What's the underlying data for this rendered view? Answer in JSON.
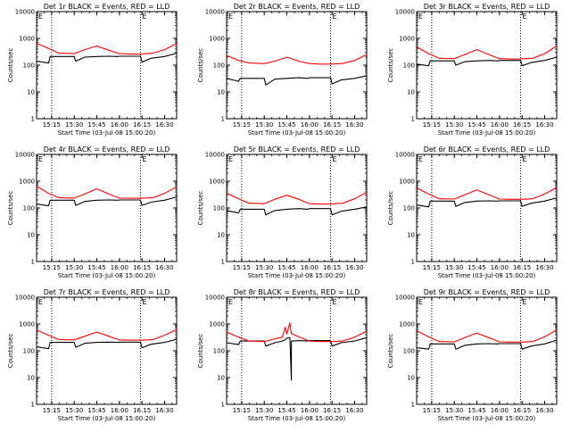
{
  "colors": {
    "events": "#000000",
    "lld": "#ff0000",
    "axes": "#000000",
    "background": "#ffffff"
  },
  "chart_data": [
    {
      "type": "line",
      "title": "Det 1r BLACK = Events, RED = LLD",
      "xlabel": "Start Time (03-Jul-08 15:00:20)",
      "ylabel": "Counts/sec",
      "yscale": "log",
      "ylim": [
        1,
        10000
      ],
      "xlim": [
        "15:05",
        "16:38"
      ],
      "x_tick_labels": [
        "15:15",
        "15:30",
        "15:45",
        "16:00",
        "16:15",
        "16:30"
      ],
      "y_tick_labels": [
        "1",
        "10",
        "100",
        "1000",
        "10000"
      ],
      "corner_marks": [
        "E",
        "E"
      ],
      "vertical_dotted_lines": [
        "15:15",
        "16:14"
      ],
      "series": [
        {
          "x": [
            "15:05",
            "15:13",
            "15:14",
            "15:20",
            "15:30",
            "15:31",
            "15:37",
            "15:45",
            "15:53",
            "15:59",
            "16:00",
            "16:07",
            "16:14",
            "16:15",
            "16:21",
            "16:30",
            "16:38"
          ],
          "values": [
            140,
            120,
            210,
            210,
            210,
            140,
            200,
            210,
            215,
            210,
            215,
            215,
            215,
            130,
            180,
            210,
            280
          ]
        },
        {
          "x": [
            "15:05",
            "15:13",
            "15:20",
            "15:30",
            "15:37",
            "15:45",
            "15:53",
            "16:00",
            "16:07",
            "16:14",
            "16:22",
            "16:30",
            "16:38"
          ],
          "values": [
            650,
            420,
            280,
            270,
            380,
            520,
            360,
            270,
            260,
            260,
            280,
            380,
            640
          ]
        }
      ]
    },
    {
      "type": "line",
      "title": "Det 2r BLACK = Events, RED = LLD",
      "xlabel": "Start Time (03-Jul-08 15:00:20)",
      "ylabel": "Counts/sec",
      "yscale": "log",
      "ylim": [
        1,
        10000
      ],
      "xlim": [
        "15:05",
        "16:38"
      ],
      "x_tick_labels": [
        "15:15",
        "15:30",
        "15:45",
        "16:00",
        "16:15",
        "16:30"
      ],
      "y_tick_labels": [
        "1",
        "10",
        "100",
        "1000",
        "10000"
      ],
      "corner_marks": [
        "E",
        "E"
      ],
      "vertical_dotted_lines": [
        "15:15",
        "16:14"
      ],
      "series": [
        {
          "x": [
            "15:05",
            "15:13",
            "15:14",
            "15:20",
            "15:30",
            "15:31",
            "15:37",
            "15:45",
            "15:53",
            "15:59",
            "16:00",
            "16:07",
            "16:14",
            "16:15",
            "16:21",
            "16:30",
            "16:38"
          ],
          "values": [
            32,
            25,
            32,
            32,
            32,
            18,
            30,
            32,
            34,
            32,
            34,
            34,
            34,
            20,
            28,
            32,
            40
          ]
        },
        {
          "x": [
            "15:05",
            "15:13",
            "15:20",
            "15:30",
            "15:37",
            "15:45",
            "15:53",
            "16:00",
            "16:07",
            "16:14",
            "16:22",
            "16:30",
            "16:38"
          ],
          "values": [
            230,
            150,
            120,
            115,
            140,
            200,
            140,
            115,
            110,
            110,
            115,
            150,
            250
          ]
        }
      ]
    },
    {
      "type": "line",
      "title": "Det 3r BLACK = Events, RED = LLD",
      "xlabel": "Start Time (03-Jul-08 15:00:20)",
      "ylabel": "Counts/sec",
      "yscale": "log",
      "ylim": [
        1,
        10000
      ],
      "xlim": [
        "15:05",
        "16:38"
      ],
      "x_tick_labels": [
        "15:15",
        "15:30",
        "15:45",
        "16:00",
        "16:15",
        "16:30"
      ],
      "y_tick_labels": [
        "1",
        "10",
        "100",
        "1000",
        "10000"
      ],
      "corner_marks": [
        "E",
        "E"
      ],
      "vertical_dotted_lines": [
        "15:15",
        "16:14"
      ],
      "series": [
        {
          "x": [
            "15:05",
            "15:13",
            "15:14",
            "15:20",
            "15:30",
            "15:31",
            "15:37",
            "15:45",
            "15:53",
            "15:59",
            "16:00",
            "16:07",
            "16:14",
            "16:15",
            "16:21",
            "16:30",
            "16:38"
          ],
          "values": [
            110,
            95,
            145,
            145,
            145,
            100,
            135,
            145,
            150,
            145,
            150,
            150,
            150,
            95,
            125,
            150,
            200
          ]
        },
        {
          "x": [
            "15:05",
            "15:13",
            "15:20",
            "15:30",
            "15:37",
            "15:45",
            "15:53",
            "16:00",
            "16:07",
            "16:14",
            "16:22",
            "16:30",
            "16:38"
          ],
          "values": [
            480,
            270,
            180,
            175,
            250,
            380,
            250,
            175,
            170,
            170,
            180,
            270,
            520
          ]
        }
      ]
    },
    {
      "type": "line",
      "title": "Det 4r BLACK = Events, RED = LLD",
      "xlabel": "Start Time (03-Jul-08 15:00:20)",
      "ylabel": "Counts/sec",
      "yscale": "log",
      "ylim": [
        1,
        10000
      ],
      "xlim": [
        "15:05",
        "16:38"
      ],
      "x_tick_labels": [
        "15:15",
        "15:30",
        "15:45",
        "16:00",
        "16:15",
        "16:30"
      ],
      "y_tick_labels": [
        "1",
        "10",
        "100",
        "1000",
        "10000"
      ],
      "corner_marks": [
        "E",
        "E"
      ],
      "vertical_dotted_lines": [
        "15:15",
        "16:14"
      ],
      "series": [
        {
          "x": [
            "15:05",
            "15:13",
            "15:14",
            "15:20",
            "15:30",
            "15:31",
            "15:37",
            "15:45",
            "15:53",
            "15:59",
            "16:00",
            "16:07",
            "16:14",
            "16:15",
            "16:21",
            "16:30",
            "16:38"
          ],
          "values": [
            140,
            120,
            195,
            195,
            195,
            125,
            175,
            195,
            200,
            195,
            200,
            200,
            200,
            125,
            165,
            195,
            260
          ]
        },
        {
          "x": [
            "15:05",
            "15:13",
            "15:20",
            "15:30",
            "15:37",
            "15:45",
            "15:53",
            "16:00",
            "16:07",
            "16:14",
            "16:22",
            "16:30",
            "16:38"
          ],
          "values": [
            650,
            350,
            240,
            235,
            330,
            520,
            330,
            235,
            230,
            230,
            240,
            350,
            620
          ]
        }
      ]
    },
    {
      "type": "line",
      "title": "Det 5r BLACK = Events, RED = LLD",
      "xlabel": "Start Time (03-Jul-08 15:00:20)",
      "ylabel": "Counts/sec",
      "yscale": "log",
      "ylim": [
        1,
        10000
      ],
      "xlim": [
        "15:05",
        "16:38"
      ],
      "x_tick_labels": [
        "15:15",
        "15:30",
        "15:45",
        "16:00",
        "16:15",
        "16:30"
      ],
      "y_tick_labels": [
        "1",
        "10",
        "100",
        "1000",
        "10000"
      ],
      "corner_marks": [
        "E",
        "E"
      ],
      "vertical_dotted_lines": [
        "15:15",
        "16:14"
      ],
      "series": [
        {
          "x": [
            "15:05",
            "15:13",
            "15:14",
            "15:20",
            "15:30",
            "15:31",
            "15:37",
            "15:45",
            "15:53",
            "15:59",
            "16:00",
            "16:07",
            "16:14",
            "16:15",
            "16:21",
            "16:30",
            "16:38"
          ],
          "values": [
            80,
            65,
            90,
            90,
            90,
            55,
            80,
            90,
            95,
            90,
            95,
            95,
            95,
            55,
            75,
            90,
            110
          ]
        },
        {
          "x": [
            "15:05",
            "15:13",
            "15:20",
            "15:30",
            "15:37",
            "15:45",
            "15:53",
            "16:00",
            "16:07",
            "16:14",
            "16:22",
            "16:30",
            "16:38"
          ],
          "values": [
            360,
            220,
            150,
            145,
            210,
            300,
            210,
            145,
            140,
            140,
            150,
            220,
            380
          ]
        }
      ]
    },
    {
      "type": "line",
      "title": "Det 6r BLACK = Events, RED = LLD",
      "xlabel": "Start Time (03-Jul-08 15:00:20)",
      "ylabel": "Counts/sec",
      "yscale": "log",
      "ylim": [
        1,
        10000
      ],
      "xlim": [
        "15:05",
        "16:38"
      ],
      "x_tick_labels": [
        "15:15",
        "15:30",
        "15:45",
        "16:00",
        "16:15",
        "16:30"
      ],
      "y_tick_labels": [
        "1",
        "10",
        "100",
        "1000",
        "10000"
      ],
      "corner_marks": [
        "E",
        "E"
      ],
      "vertical_dotted_lines": [
        "15:15",
        "16:14"
      ],
      "series": [
        {
          "x": [
            "15:05",
            "15:13",
            "15:14",
            "15:20",
            "15:30",
            "15:31",
            "15:37",
            "15:45",
            "15:53",
            "15:59",
            "16:00",
            "16:07",
            "16:14",
            "16:15",
            "16:21",
            "16:30",
            "16:38"
          ],
          "values": [
            130,
            110,
            180,
            180,
            180,
            115,
            160,
            180,
            185,
            180,
            185,
            185,
            185,
            115,
            150,
            180,
            240
          ]
        },
        {
          "x": [
            "15:05",
            "15:13",
            "15:20",
            "15:30",
            "15:37",
            "15:45",
            "15:53",
            "16:00",
            "16:07",
            "16:14",
            "16:22",
            "16:30",
            "16:38"
          ],
          "values": [
            560,
            330,
            220,
            215,
            310,
            470,
            310,
            215,
            210,
            210,
            220,
            330,
            580
          ]
        }
      ]
    },
    {
      "type": "line",
      "title": "Det 7r BLACK = Events, RED = LLD",
      "xlabel": "Start Time (03-Jul-08 15:00:20)",
      "ylabel": "Counts/sec",
      "yscale": "log",
      "ylim": [
        1,
        10000
      ],
      "xlim": [
        "15:05",
        "16:38"
      ],
      "x_tick_labels": [
        "15:15",
        "15:30",
        "15:45",
        "16:00",
        "16:15",
        "16:30"
      ],
      "y_tick_labels": [
        "1",
        "10",
        "100",
        "1000",
        "10000"
      ],
      "corner_marks": [
        "E",
        "E"
      ],
      "vertical_dotted_lines": [
        "15:15",
        "16:14"
      ],
      "series": [
        {
          "x": [
            "15:05",
            "15:13",
            "15:14",
            "15:20",
            "15:30",
            "15:31",
            "15:37",
            "15:45",
            "15:53",
            "15:59",
            "16:00",
            "16:07",
            "16:14",
            "16:15",
            "16:21",
            "16:30",
            "16:38"
          ],
          "values": [
            140,
            120,
            205,
            205,
            205,
            135,
            190,
            205,
            210,
            205,
            210,
            210,
            210,
            130,
            175,
            205,
            270
          ]
        },
        {
          "x": [
            "15:05",
            "15:13",
            "15:20",
            "15:30",
            "15:37",
            "15:45",
            "15:53",
            "16:00",
            "16:07",
            "16:14",
            "16:22",
            "16:30",
            "16:38"
          ],
          "values": [
            600,
            380,
            260,
            255,
            350,
            500,
            350,
            255,
            250,
            250,
            260,
            380,
            620
          ]
        }
      ]
    },
    {
      "type": "line",
      "title": "Det 8r BLACK = Events, RED = LLD",
      "xlabel": "Start Time (03-Jul-08 15:00:20)",
      "ylabel": "Counts/sec",
      "yscale": "log",
      "ylim": [
        1,
        10000
      ],
      "xlim": [
        "15:05",
        "16:38"
      ],
      "x_tick_labels": [
        "15:15",
        "15:30",
        "15:45",
        "16:00",
        "16:15",
        "16:30"
      ],
      "y_tick_labels": [
        "1",
        "10",
        "100",
        "1000",
        "10000"
      ],
      "corner_marks": [
        "E",
        "E"
      ],
      "vertical_dotted_lines": [
        "15:15",
        "16:14"
      ],
      "series": [
        {
          "x": [
            "15:05",
            "15:13",
            "15:14",
            "15:20",
            "15:30",
            "15:31",
            "15:37",
            "15:42",
            "15:44",
            "15:45",
            "15:47",
            "15:48",
            "15:48",
            "15:53",
            "15:59",
            "16:00",
            "16:07",
            "16:14",
            "16:15",
            "16:21",
            "16:30",
            "16:38"
          ],
          "values": [
            200,
            170,
            230,
            230,
            230,
            150,
            200,
            230,
            260,
            300,
            310,
            8,
            230,
            240,
            230,
            240,
            240,
            240,
            150,
            200,
            230,
            310
          ]
        },
        {
          "x": [
            "15:05",
            "15:13",
            "15:20",
            "15:30",
            "15:37",
            "15:42",
            "15:44",
            "15:45",
            "15:47",
            "15:48",
            "15:53",
            "16:00",
            "16:07",
            "16:14",
            "16:22",
            "16:30",
            "16:38"
          ],
          "values": [
            500,
            320,
            230,
            220,
            280,
            320,
            750,
            420,
            1100,
            440,
            330,
            230,
            220,
            220,
            230,
            320,
            540
          ]
        }
      ]
    },
    {
      "type": "line",
      "title": "Det 9r BLACK = Events, RED = LLD",
      "xlabel": "Start Time (03-Jul-08 15:00:20)",
      "ylabel": "Counts/sec",
      "yscale": "log",
      "ylim": [
        1,
        10000
      ],
      "xlim": [
        "15:05",
        "16:38"
      ],
      "x_tick_labels": [
        "15:15",
        "15:30",
        "15:45",
        "16:00",
        "16:15",
        "16:30"
      ],
      "y_tick_labels": [
        "1",
        "10",
        "100",
        "1000",
        "10000"
      ],
      "corner_marks": [
        "E",
        "E"
      ],
      "vertical_dotted_lines": [
        "15:15",
        "16:14"
      ],
      "series": [
        {
          "x": [
            "15:05",
            "15:13",
            "15:14",
            "15:20",
            "15:30",
            "15:31",
            "15:37",
            "15:45",
            "15:53",
            "15:59",
            "16:00",
            "16:07",
            "16:14",
            "16:15",
            "16:21",
            "16:30",
            "16:38"
          ],
          "values": [
            130,
            115,
            180,
            180,
            180,
            115,
            160,
            180,
            185,
            180,
            185,
            185,
            185,
            115,
            150,
            180,
            250
          ]
        },
        {
          "x": [
            "15:05",
            "15:13",
            "15:20",
            "15:30",
            "15:37",
            "15:45",
            "15:53",
            "16:00",
            "16:07",
            "16:14",
            "16:22",
            "16:30",
            "16:38"
          ],
          "values": [
            560,
            330,
            220,
            215,
            310,
            460,
            310,
            215,
            210,
            210,
            220,
            330,
            600
          ]
        }
      ]
    }
  ]
}
